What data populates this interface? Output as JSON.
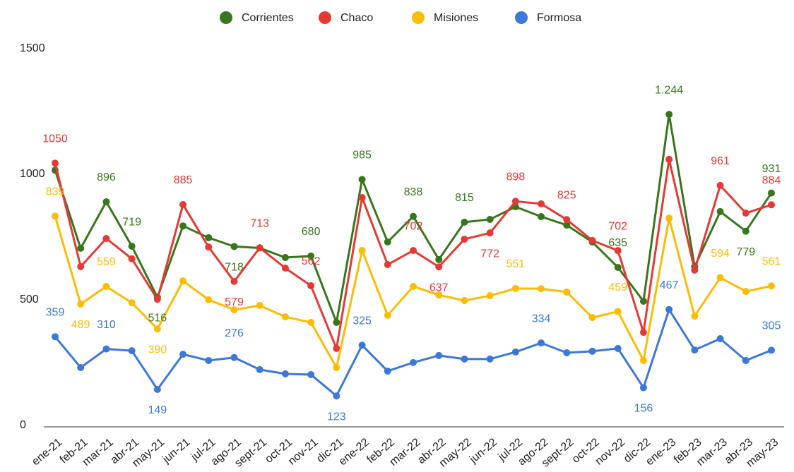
{
  "chart_data": {
    "type": "line",
    "categories": [
      "ene-21",
      "feb-21",
      "mar-21",
      "abr-21",
      "may-21",
      "jun-21",
      "jul-21",
      "ago-21",
      "sept-21",
      "oct-21",
      "nov-21",
      "dic-21",
      "ene-22",
      "feb-22",
      "mar-22",
      "abr-22",
      "may-22",
      "jun-22",
      "jul-22",
      "ago-22",
      "sept-22",
      "oct-22",
      "nov-22",
      "dic-22",
      "ene-23",
      "feb-23",
      "mar-23",
      "abr-23",
      "may-23"
    ],
    "series": [
      {
        "name": "Corrientes",
        "color": "#38761d",
        "values": [
          1022,
          711,
          896,
          719,
          516,
          800,
          753,
          718,
          712,
          674,
          680,
          416,
          985,
          736,
          838,
          666,
          815,
          826,
          876,
          837,
          803,
          736,
          635,
          500,
          1244,
          638,
          857,
          779,
          931
        ],
        "value_labels": [
          null,
          null,
          "896",
          "719",
          "516",
          null,
          null,
          "718",
          null,
          null,
          "680",
          null,
          "985",
          null,
          "838",
          null,
          "815",
          null,
          null,
          null,
          null,
          null,
          "635",
          null,
          "1.244",
          null,
          null,
          "779",
          "931"
        ]
      },
      {
        "name": "Chaco",
        "color": "#e53935",
        "values": [
          1050,
          638,
          750,
          669,
          508,
          885,
          716,
          579,
          713,
          632,
          562,
          312,
          913,
          646,
          702,
          637,
          747,
          772,
          898,
          888,
          825,
          742,
          702,
          376,
          1065,
          624,
          961,
          851,
          884
        ],
        "value_labels": [
          "1050",
          null,
          null,
          null,
          null,
          "885",
          null,
          "579",
          "713",
          null,
          "562",
          null,
          null,
          null,
          "702",
          "637",
          null,
          "772",
          "898",
          null,
          "825",
          null,
          "702",
          null,
          null,
          null,
          "961",
          null,
          "884"
        ]
      },
      {
        "name": "Misiones",
        "color": "#fbbc04",
        "values": [
          839,
          489,
          559,
          494,
          390,
          581,
          506,
          466,
          483,
          438,
          416,
          236,
          702,
          444,
          559,
          525,
          503,
          522,
          551,
          550,
          537,
          435,
          459,
          264,
          831,
          441,
          594,
          539,
          561
        ],
        "value_labels": [
          "839",
          "489",
          "559",
          null,
          "390",
          null,
          null,
          null,
          null,
          null,
          null,
          null,
          null,
          null,
          null,
          null,
          null,
          null,
          "551",
          null,
          null,
          null,
          "459",
          null,
          null,
          null,
          "594",
          null,
          "561"
        ]
      },
      {
        "name": "Formosa",
        "color": "#3c78d8",
        "values": [
          359,
          236,
          310,
          303,
          149,
          289,
          264,
          276,
          228,
          211,
          208,
          123,
          325,
          222,
          256,
          284,
          270,
          270,
          298,
          334,
          295,
          301,
          312,
          156,
          467,
          306,
          351,
          264,
          305
        ],
        "value_labels": [
          "359",
          null,
          "310",
          null,
          "149",
          null,
          null,
          "276",
          null,
          null,
          null,
          "123",
          "325",
          null,
          null,
          null,
          null,
          null,
          null,
          "334",
          null,
          null,
          null,
          "156",
          "467",
          null,
          null,
          null,
          "305"
        ]
      }
    ],
    "ylim": [
      0,
      1500
    ],
    "yticks": [
      0,
      500,
      1000,
      1500
    ],
    "grid": false,
    "legend": "top"
  }
}
